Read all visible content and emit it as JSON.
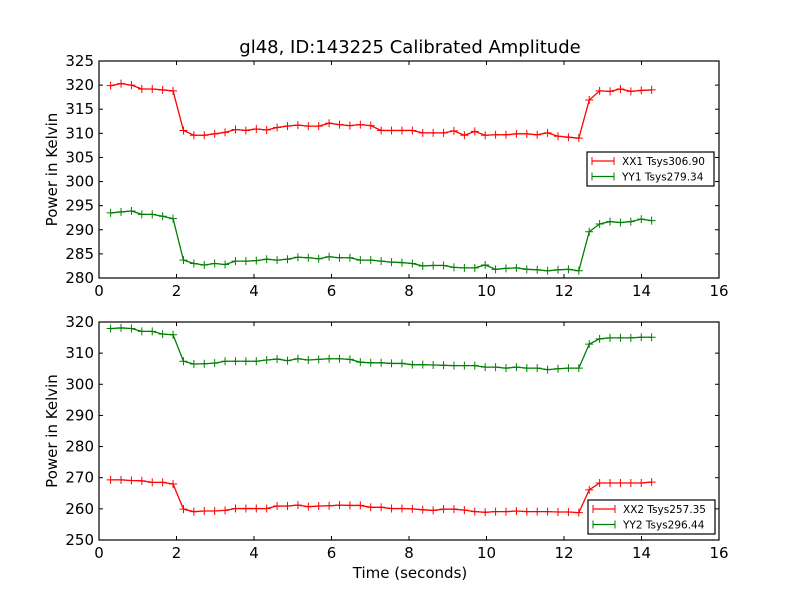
{
  "chart_data": [
    {
      "type": "line",
      "title": "gl48, ID:143225 Calibrated Amplitude",
      "xlabel": "",
      "ylabel": "Power in Kelvin",
      "xlim": [
        0,
        16
      ],
      "ylim": [
        280,
        325
      ],
      "xticks": [
        "0",
        "2",
        "4",
        "6",
        "8",
        "10",
        "12",
        "14",
        "16"
      ],
      "yticks": [
        "280",
        "285",
        "290",
        "295",
        "300",
        "305",
        "310",
        "315",
        "320",
        "325"
      ],
      "legend_position": "center-right",
      "x_start": 0.3,
      "x_step": 0.2685,
      "series": [
        {
          "name": "XX1 Tsys306.90",
          "color": "#ff0000",
          "values": [
            319.9,
            320.3,
            320.0,
            319.2,
            319.2,
            319.0,
            318.8,
            310.6,
            309.6,
            309.6,
            309.9,
            310.2,
            310.8,
            310.6,
            310.9,
            310.7,
            311.2,
            311.5,
            311.7,
            311.5,
            311.5,
            312.1,
            311.8,
            311.6,
            311.8,
            311.6,
            310.6,
            310.6,
            310.6,
            310.6,
            310.1,
            310.1,
            310.1,
            310.5,
            309.6,
            310.4,
            309.6,
            309.7,
            309.7,
            309.9,
            309.9,
            309.7,
            310.1,
            309.4,
            309.2,
            309.0,
            316.9,
            318.8,
            318.7,
            319.2,
            318.7,
            318.9,
            319.0
          ]
        },
        {
          "name": "YY1 Tsys279.34",
          "color": "#008000",
          "values": [
            293.5,
            293.7,
            293.9,
            293.2,
            293.2,
            292.8,
            292.3,
            283.7,
            283.0,
            282.7,
            283.0,
            282.8,
            283.5,
            283.5,
            283.6,
            283.9,
            283.7,
            283.9,
            284.3,
            284.2,
            284.0,
            284.4,
            284.2,
            284.2,
            283.7,
            283.7,
            283.5,
            283.3,
            283.2,
            283.0,
            282.5,
            282.6,
            282.6,
            282.2,
            282.1,
            282.1,
            282.7,
            281.8,
            282.0,
            282.1,
            281.8,
            281.7,
            281.5,
            281.7,
            281.8,
            281.5,
            289.6,
            291.2,
            291.7,
            291.5,
            291.7,
            292.2,
            291.9
          ]
        }
      ]
    },
    {
      "type": "line",
      "title": "",
      "xlabel": "Time (seconds)",
      "ylabel": "Power in Kelvin",
      "xlim": [
        0,
        16
      ],
      "ylim": [
        250,
        320
      ],
      "xticks": [
        "0",
        "2",
        "4",
        "6",
        "8",
        "10",
        "12",
        "14",
        "16"
      ],
      "yticks": [
        "250",
        "260",
        "270",
        "280",
        "290",
        "300",
        "310",
        "320"
      ],
      "legend_position": "lower-right",
      "x_start": 0.3,
      "x_step": 0.2685,
      "series": [
        {
          "name": "XX2 Tsys257.35",
          "color": "#ff0000",
          "values": [
            269.3,
            269.3,
            269.1,
            269.0,
            268.5,
            268.5,
            268.0,
            259.9,
            259.1,
            259.3,
            259.3,
            259.5,
            260.1,
            260.1,
            260.1,
            260.1,
            260.9,
            260.9,
            261.2,
            260.7,
            260.9,
            261.0,
            261.2,
            261.1,
            261.1,
            260.5,
            260.5,
            260.1,
            260.1,
            260.0,
            259.7,
            259.5,
            259.9,
            259.9,
            259.6,
            259.1,
            258.9,
            259.1,
            259.1,
            259.3,
            259.1,
            259.1,
            259.1,
            259.0,
            259.0,
            258.8,
            266.1,
            268.3,
            268.3,
            268.3,
            268.3,
            268.3,
            268.6
          ]
        },
        {
          "name": "YY2 Tsys296.44",
          "color": "#008000",
          "values": [
            317.9,
            318.1,
            317.9,
            317.0,
            317.0,
            316.1,
            315.9,
            307.4,
            306.5,
            306.6,
            306.8,
            307.4,
            307.4,
            307.4,
            307.4,
            307.8,
            308.1,
            307.6,
            308.2,
            307.8,
            308.0,
            308.2,
            308.2,
            308.0,
            307.1,
            306.9,
            306.9,
            306.7,
            306.7,
            306.3,
            306.3,
            306.2,
            306.1,
            306.0,
            306.0,
            306.0,
            305.5,
            305.5,
            305.2,
            305.5,
            305.2,
            305.2,
            304.7,
            305.0,
            305.2,
            305.2,
            312.9,
            314.6,
            314.9,
            314.9,
            314.9,
            315.1,
            315.1
          ]
        }
      ]
    }
  ]
}
